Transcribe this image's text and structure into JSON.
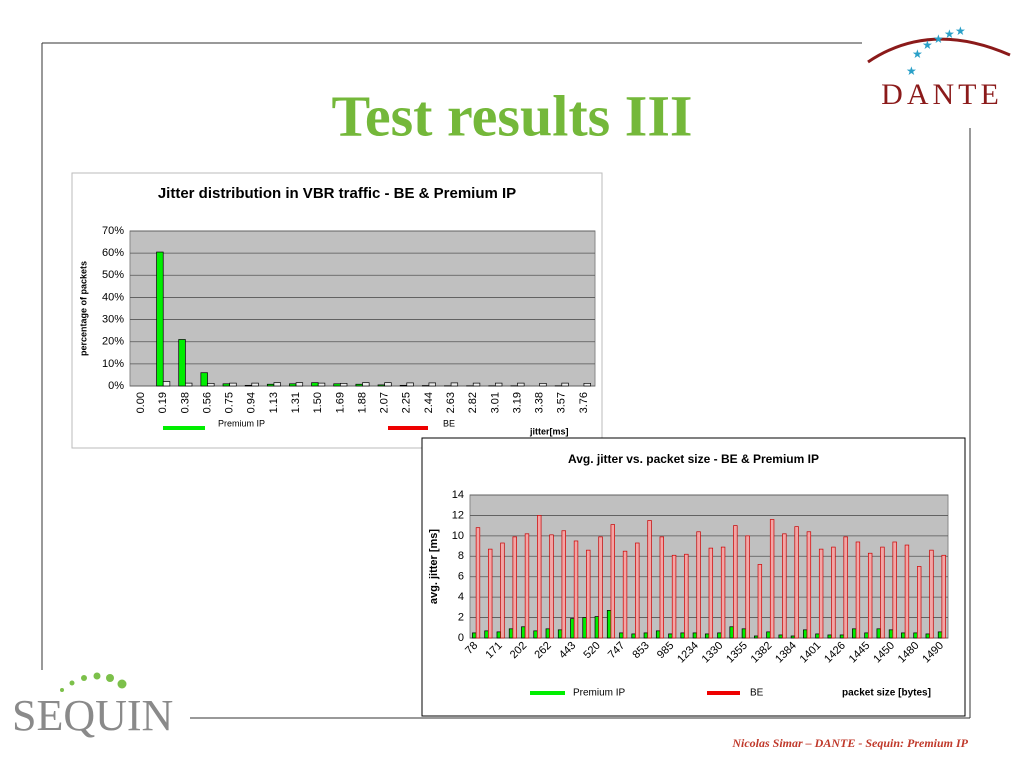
{
  "slide": {
    "title": "Test results III",
    "footer": "Nicolas Simar – DANTE - Sequin: Premium IP",
    "logo_top": "DANTE",
    "logo_bottom": "SEQUIN"
  },
  "chart_data": [
    {
      "type": "bar",
      "title": "Jitter distribution in VBR traffic - BE & Premium IP",
      "x_label": "jitter[ms]",
      "y_label": "percentage of packets",
      "categories": [
        "0.00",
        "0.19",
        "0.38",
        "0.56",
        "0.75",
        "0.94",
        "1.13",
        "1.31",
        "1.50",
        "1.69",
        "1.88",
        "2.07",
        "2.25",
        "2.44",
        "2.63",
        "2.82",
        "3.01",
        "3.19",
        "3.38",
        "3.57",
        "3.76"
      ],
      "series": [
        {
          "name": "Premium IP",
          "color": "#00ee00",
          "bar_fill": "#00ee00",
          "values": [
            0,
            60.5,
            21,
            6,
            1,
            0.3,
            0.8,
            1,
            1.5,
            1,
            0.8,
            0.5,
            0.3,
            0.2,
            0.1,
            0.1,
            0.1,
            0.1,
            0,
            0.1,
            0
          ]
        },
        {
          "name": "BE",
          "color": "#ee0000",
          "bar_fill": "#eeeeee",
          "values": [
            0,
            2,
            1.3,
            1.2,
            1.3,
            1.3,
            1.5,
            1.5,
            1.3,
            1.2,
            1.5,
            1.5,
            1.4,
            1.4,
            1.4,
            1.3,
            1.3,
            1.3,
            1.2,
            1.3,
            1.2
          ]
        }
      ],
      "ylim": [
        0,
        70
      ],
      "yticks": [
        {
          "value": 0,
          "label": "0%"
        },
        {
          "value": 10,
          "label": "10%"
        },
        {
          "value": 20,
          "label": "20%"
        },
        {
          "value": 30,
          "label": "30%"
        },
        {
          "value": 40,
          "label": "40%"
        },
        {
          "value": 50,
          "label": "50%"
        },
        {
          "value": 60,
          "label": "60%"
        },
        {
          "value": 70,
          "label": "70%"
        }
      ],
      "grid": true
    },
    {
      "type": "bar",
      "title": "Avg. jitter vs. packet size - BE & Premium IP",
      "x_label": "packet size [bytes]",
      "y_label": "avg. jitter [ms]",
      "categories": [
        "78",
        null,
        "171",
        null,
        "202",
        null,
        "262",
        null,
        "443",
        null,
        "520",
        null,
        "747",
        null,
        "853",
        null,
        "985",
        null,
        "1234",
        null,
        "1330",
        null,
        "1355",
        null,
        "1382",
        null,
        "1384",
        null,
        "1401",
        null,
        "1426",
        null,
        "1445",
        null,
        "1450",
        null,
        "1480",
        null,
        "1490"
      ],
      "series": [
        {
          "name": "Premium IP",
          "color": "#00ee00",
          "bar_fill": "#00ee00",
          "values": [
            0.5,
            0.7,
            0.6,
            0.9,
            1.1,
            0.7,
            0.9,
            0.8,
            1.9,
            2.0,
            2.1,
            2.7,
            0.5,
            0.4,
            0.5,
            0.7,
            0.4,
            0.5,
            0.5,
            0.4,
            0.5,
            1.1,
            0.9,
            0.2,
            0.6,
            0.3,
            0.2,
            0.8,
            0.4,
            0.3,
            0.3,
            0.9,
            0.5,
            0.9,
            0.8,
            0.5,
            0.5,
            0.4,
            0.6
          ]
        },
        {
          "name": "BE",
          "color": "#ee0000",
          "bar_fill": "#f2a6a6",
          "values": [
            10.8,
            8.7,
            9.3,
            9.9,
            10.2,
            12,
            10.1,
            10.5,
            9.5,
            8.6,
            9.9,
            11.1,
            8.5,
            9.3,
            11.5,
            9.9,
            8.1,
            8.2,
            10.4,
            8.8,
            8.9,
            11,
            10,
            7.2,
            11.6,
            10.2,
            10.9,
            10.4,
            8.7,
            8.9,
            9.9,
            9.4,
            8.3,
            8.9,
            9.4,
            9.1,
            7,
            8.6,
            8.1
          ]
        }
      ],
      "ylim": [
        0,
        14
      ],
      "yticks": [
        0,
        2,
        4,
        6,
        8,
        10,
        12,
        14
      ],
      "grid": true
    }
  ]
}
